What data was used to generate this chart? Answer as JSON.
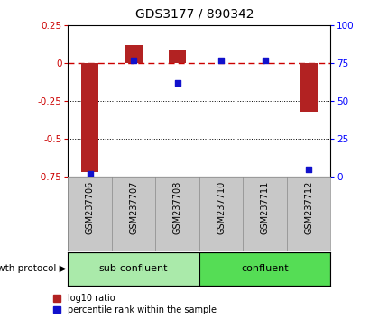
{
  "title": "GDS3177 / 890342",
  "samples": [
    "GSM237706",
    "GSM237707",
    "GSM237708",
    "GSM237710",
    "GSM237711",
    "GSM237712"
  ],
  "log10_ratio": [
    -0.72,
    0.12,
    0.09,
    0.0,
    0.0,
    -0.32
  ],
  "percentile_rank": [
    2,
    77,
    62,
    77,
    77,
    5
  ],
  "groups": [
    {
      "label": "sub-confluent",
      "start": 0,
      "end": 3,
      "color": "#AAEAAA"
    },
    {
      "label": "confluent",
      "start": 3,
      "end": 6,
      "color": "#55DD55"
    }
  ],
  "group_label": "growth protocol",
  "ylim_left": [
    -0.75,
    0.25
  ],
  "ylim_right": [
    0,
    100
  ],
  "yticks_left": [
    0.25,
    0.0,
    -0.25,
    -0.5,
    -0.75
  ],
  "yticks_right": [
    100,
    75,
    50,
    25,
    0
  ],
  "left_tick_labels": [
    "0.25",
    "0",
    "-0.25",
    "-0.5",
    "-0.75"
  ],
  "right_tick_labels": [
    "100",
    "75",
    "50",
    "25",
    "0"
  ],
  "bar_color": "#B22222",
  "dot_color": "#1111CC",
  "zero_line_color": "#CC0000",
  "bar_width": 0.4,
  "legend_red_label": "log10 ratio",
  "legend_blue_label": "percentile rank within the sample",
  "label_bg_color": "#C8C8C8",
  "label_border_color": "#888888"
}
